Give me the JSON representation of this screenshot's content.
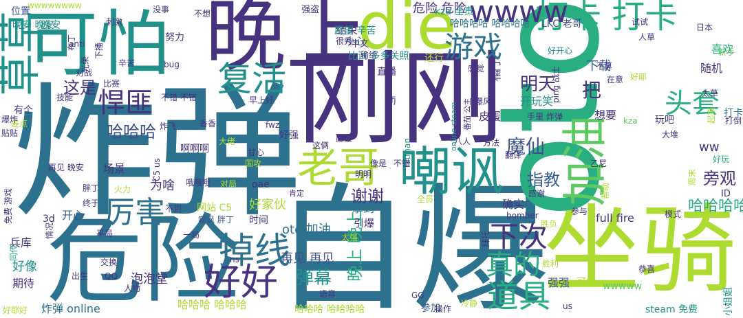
{
  "palette": {
    "dark_purple": "#46327e",
    "indigo": "#3b528b",
    "blue": "#365c8d",
    "steel": "#2c728e",
    "teal": "#21918c",
    "green_teal": "#28ae80",
    "green": "#5ec962",
    "lime": "#addc30",
    "yellow": "#fde725"
  },
  "words": [
    "炸弹",
    "自爆",
    "刚刚",
    "坐骑",
    "oto",
    "危险",
    "晚上",
    "可怕",
    "加油",
    "嘲讽",
    "die",
    "老哥",
    "草草",
    "掉线",
    "复活",
    "好好",
    "打卡 打卡",
    "wwww",
    "游戏",
    "厉害",
    "道具",
    "悍匪",
    "下次",
    "真的",
    "头套",
    "魔仙",
    "哈哈哈",
    "谢谢",
    "弹幕",
    "晚上 晚上",
    "明天",
    "旁观",
    "指教",
    "把",
    "这是",
    "哈哈哈哈",
    "oto 加油",
    "再见 再见",
    "好家伙",
    "危险 危险",
    "kza 全责",
    "哈哈哈哈 哈哈哈哈",
    "打卡",
    "喜欢",
    "下载",
    "结束",
    "愿望 辛苦",
    "小心",
    "中文",
    "比试 多多关照",
    "还行",
    "LKC 老哥",
    "试试",
    "日本",
    "随机",
    "玩吧",
    "想要",
    "开玩笑",
    "ww",
    "拿到",
    "引爆",
    "确实",
    "好像",
    "期待",
    "开心",
    "为啥",
    "场景",
    "泡泡堂",
    "炸弹 online",
    "哈哈哈 哈哈哈",
    "哈哈哈 哈哈哈哈",
    "steam 免费",
    "小姐姐",
    "强强",
    "可爱",
    "wwwww",
    "参加",
    "冷静",
    "GG",
    "bomber",
    "full fire",
    "时间",
    "嘲讽 胖丁",
    "网站 C5",
    "胖丁",
    "终于",
    "再见 晚安",
    "免费 游戏",
    "3d",
    "兵库",
    "平局",
    "情况",
    "同传",
    "出生",
    "交换",
    "QQ",
    "人物",
    "好耶好",
    "位置",
    "晚安 晚安",
    "有个",
    "差点",
    "爆炸",
    "贴贴",
    "技能",
    "比赛",
    "刺激",
    "没事",
    "不想",
    "强盗",
    "努力",
    "bug",
    "布丁",
    "对战",
    "光荣",
    "下播",
    "辛苦",
    "不错 不错",
    "早上好",
    "炸飞",
    "香香",
    "啊啊啊",
    "大佬",
    "甘心",
    "好强",
    "这俩",
    "愿望",
    "皮蛋",
    "手里 炸弹",
    "kza",
    "方法",
    "翻译",
    "感谢",
    "参与",
    "胜负",
    "恭喜",
    "胜利",
    "拜托",
    "全员",
    "太强",
    "ID",
    "模式",
    "不算",
    "在意",
    "好开心",
    "感觉",
    "直播",
    "输给",
    "很秀",
    "online steam",
    "番茄 公主",
    "八人",
    "爆风",
    "fatman",
    "不错",
    "火力",
    "哦哦哦",
    "对局",
    "oae",
    "国攻",
    "明明",
    "肯定",
    "像是",
    "C5 us",
    "us",
    "操作",
    "ns",
    "一局",
    "不到",
    "wwwwwwww",
    "晚安",
    "anti",
    "乙尼",
    "大堆",
    "新手",
    "人草",
    "太草",
    "好玩",
    "打倒",
    "ping 战士",
    "语音",
    "ffj",
    "fwz",
    "橘子",
    "帮助",
    "周末",
    "起来",
    "好耶"
  ]
}
